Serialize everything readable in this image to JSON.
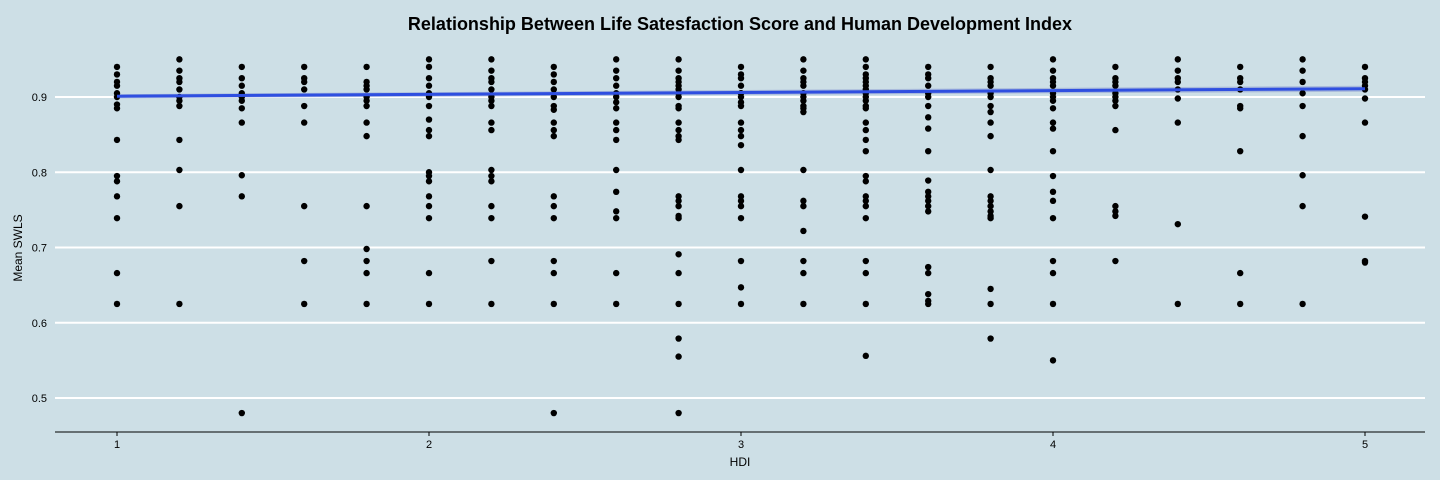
{
  "chart_data": {
    "type": "scatter",
    "title": "Relationship Between Life Satesfaction Score and Human Development Index",
    "xlabel": "HDI",
    "ylabel": "Mean SWLS",
    "xlim": [
      0.8,
      5.2
    ],
    "ylim": [
      0.455,
      0.96
    ],
    "x_ticks": [
      1,
      2,
      3,
      4,
      5
    ],
    "y_ticks": [
      0.5,
      0.6,
      0.7,
      0.8,
      0.9
    ],
    "grid": "horizontal",
    "colors": {
      "background": "#cddfe6",
      "points": "#000000",
      "trend_line": "#2f4fe0",
      "confidence_band": "#9aa9d6",
      "gridline": "#ffffff"
    },
    "trend_line": {
      "method": "linear",
      "x": [
        1,
        5
      ],
      "y": [
        0.901,
        0.911
      ]
    },
    "points": [
      {
        "x": 1.0,
        "y": 0.94
      },
      {
        "x": 1.0,
        "y": 0.93
      },
      {
        "x": 1.0,
        "y": 0.92
      },
      {
        "x": 1.0,
        "y": 0.915
      },
      {
        "x": 1.0,
        "y": 0.905
      },
      {
        "x": 1.0,
        "y": 0.9
      },
      {
        "x": 1.0,
        "y": 0.89
      },
      {
        "x": 1.0,
        "y": 0.885
      },
      {
        "x": 1.0,
        "y": 0.843
      },
      {
        "x": 1.0,
        "y": 0.795
      },
      {
        "x": 1.0,
        "y": 0.788
      },
      {
        "x": 1.0,
        "y": 0.768
      },
      {
        "x": 1.0,
        "y": 0.739
      },
      {
        "x": 1.0,
        "y": 0.666
      },
      {
        "x": 1.0,
        "y": 0.625
      },
      {
        "x": 1.2,
        "y": 0.95
      },
      {
        "x": 1.2,
        "y": 0.935
      },
      {
        "x": 1.2,
        "y": 0.925
      },
      {
        "x": 1.2,
        "y": 0.92
      },
      {
        "x": 1.2,
        "y": 0.91
      },
      {
        "x": 1.2,
        "y": 0.9
      },
      {
        "x": 1.2,
        "y": 0.895
      },
      {
        "x": 1.2,
        "y": 0.888
      },
      {
        "x": 1.2,
        "y": 0.843
      },
      {
        "x": 1.2,
        "y": 0.803
      },
      {
        "x": 1.2,
        "y": 0.755
      },
      {
        "x": 1.2,
        "y": 0.625
      },
      {
        "x": 1.4,
        "y": 0.94
      },
      {
        "x": 1.4,
        "y": 0.925
      },
      {
        "x": 1.4,
        "y": 0.915
      },
      {
        "x": 1.4,
        "y": 0.905
      },
      {
        "x": 1.4,
        "y": 0.9
      },
      {
        "x": 1.4,
        "y": 0.895
      },
      {
        "x": 1.4,
        "y": 0.885
      },
      {
        "x": 1.4,
        "y": 0.866
      },
      {
        "x": 1.4,
        "y": 0.796
      },
      {
        "x": 1.4,
        "y": 0.768
      },
      {
        "x": 1.4,
        "y": 0.48
      },
      {
        "x": 1.6,
        "y": 0.94
      },
      {
        "x": 1.6,
        "y": 0.925
      },
      {
        "x": 1.6,
        "y": 0.92
      },
      {
        "x": 1.6,
        "y": 0.91
      },
      {
        "x": 1.6,
        "y": 0.888
      },
      {
        "x": 1.6,
        "y": 0.866
      },
      {
        "x": 1.6,
        "y": 0.755
      },
      {
        "x": 1.6,
        "y": 0.682
      },
      {
        "x": 1.6,
        "y": 0.625
      },
      {
        "x": 1.8,
        "y": 0.94
      },
      {
        "x": 1.8,
        "y": 0.92
      },
      {
        "x": 1.8,
        "y": 0.915
      },
      {
        "x": 1.8,
        "y": 0.91
      },
      {
        "x": 1.8,
        "y": 0.9
      },
      {
        "x": 1.8,
        "y": 0.895
      },
      {
        "x": 1.8,
        "y": 0.888
      },
      {
        "x": 1.8,
        "y": 0.866
      },
      {
        "x": 1.8,
        "y": 0.848
      },
      {
        "x": 1.8,
        "y": 0.755
      },
      {
        "x": 1.8,
        "y": 0.698
      },
      {
        "x": 1.8,
        "y": 0.682
      },
      {
        "x": 1.8,
        "y": 0.666
      },
      {
        "x": 1.8,
        "y": 0.625
      },
      {
        "x": 2.0,
        "y": 0.95
      },
      {
        "x": 2.0,
        "y": 0.94
      },
      {
        "x": 2.0,
        "y": 0.925
      },
      {
        "x": 2.0,
        "y": 0.915
      },
      {
        "x": 2.0,
        "y": 0.905
      },
      {
        "x": 2.0,
        "y": 0.9
      },
      {
        "x": 2.0,
        "y": 0.888
      },
      {
        "x": 2.0,
        "y": 0.87
      },
      {
        "x": 2.0,
        "y": 0.856
      },
      {
        "x": 2.0,
        "y": 0.848
      },
      {
        "x": 2.0,
        "y": 0.8
      },
      {
        "x": 2.0,
        "y": 0.795
      },
      {
        "x": 2.0,
        "y": 0.788
      },
      {
        "x": 2.0,
        "y": 0.768
      },
      {
        "x": 2.0,
        "y": 0.755
      },
      {
        "x": 2.0,
        "y": 0.739
      },
      {
        "x": 2.0,
        "y": 0.666
      },
      {
        "x": 2.0,
        "y": 0.625
      },
      {
        "x": 2.2,
        "y": 0.95
      },
      {
        "x": 2.2,
        "y": 0.935
      },
      {
        "x": 2.2,
        "y": 0.925
      },
      {
        "x": 2.2,
        "y": 0.92
      },
      {
        "x": 2.2,
        "y": 0.91
      },
      {
        "x": 2.2,
        "y": 0.9
      },
      {
        "x": 2.2,
        "y": 0.895
      },
      {
        "x": 2.2,
        "y": 0.888
      },
      {
        "x": 2.2,
        "y": 0.866
      },
      {
        "x": 2.2,
        "y": 0.856
      },
      {
        "x": 2.2,
        "y": 0.803
      },
      {
        "x": 2.2,
        "y": 0.795
      },
      {
        "x": 2.2,
        "y": 0.788
      },
      {
        "x": 2.2,
        "y": 0.755
      },
      {
        "x": 2.2,
        "y": 0.739
      },
      {
        "x": 2.2,
        "y": 0.682
      },
      {
        "x": 2.2,
        "y": 0.625
      },
      {
        "x": 2.4,
        "y": 0.94
      },
      {
        "x": 2.4,
        "y": 0.93
      },
      {
        "x": 2.4,
        "y": 0.92
      },
      {
        "x": 2.4,
        "y": 0.91
      },
      {
        "x": 2.4,
        "y": 0.9
      },
      {
        "x": 2.4,
        "y": 0.888
      },
      {
        "x": 2.4,
        "y": 0.883
      },
      {
        "x": 2.4,
        "y": 0.866
      },
      {
        "x": 2.4,
        "y": 0.856
      },
      {
        "x": 2.4,
        "y": 0.848
      },
      {
        "x": 2.4,
        "y": 0.768
      },
      {
        "x": 2.4,
        "y": 0.755
      },
      {
        "x": 2.4,
        "y": 0.739
      },
      {
        "x": 2.4,
        "y": 0.682
      },
      {
        "x": 2.4,
        "y": 0.666
      },
      {
        "x": 2.4,
        "y": 0.625
      },
      {
        "x": 2.4,
        "y": 0.48
      },
      {
        "x": 2.6,
        "y": 0.95
      },
      {
        "x": 2.6,
        "y": 0.935
      },
      {
        "x": 2.6,
        "y": 0.925
      },
      {
        "x": 2.6,
        "y": 0.915
      },
      {
        "x": 2.6,
        "y": 0.905
      },
      {
        "x": 2.6,
        "y": 0.9
      },
      {
        "x": 2.6,
        "y": 0.893
      },
      {
        "x": 2.6,
        "y": 0.885
      },
      {
        "x": 2.6,
        "y": 0.866
      },
      {
        "x": 2.6,
        "y": 0.856
      },
      {
        "x": 2.6,
        "y": 0.843
      },
      {
        "x": 2.6,
        "y": 0.803
      },
      {
        "x": 2.6,
        "y": 0.774
      },
      {
        "x": 2.6,
        "y": 0.748
      },
      {
        "x": 2.6,
        "y": 0.739
      },
      {
        "x": 2.6,
        "y": 0.666
      },
      {
        "x": 2.6,
        "y": 0.625
      },
      {
        "x": 2.8,
        "y": 0.95
      },
      {
        "x": 2.8,
        "y": 0.935
      },
      {
        "x": 2.8,
        "y": 0.925
      },
      {
        "x": 2.8,
        "y": 0.92
      },
      {
        "x": 2.8,
        "y": 0.915
      },
      {
        "x": 2.8,
        "y": 0.91
      },
      {
        "x": 2.8,
        "y": 0.905
      },
      {
        "x": 2.8,
        "y": 0.9
      },
      {
        "x": 2.8,
        "y": 0.888
      },
      {
        "x": 2.8,
        "y": 0.885
      },
      {
        "x": 2.8,
        "y": 0.866
      },
      {
        "x": 2.8,
        "y": 0.856
      },
      {
        "x": 2.8,
        "y": 0.848
      },
      {
        "x": 2.8,
        "y": 0.843
      },
      {
        "x": 2.8,
        "y": 0.768
      },
      {
        "x": 2.8,
        "y": 0.762
      },
      {
        "x": 2.8,
        "y": 0.755
      },
      {
        "x": 2.8,
        "y": 0.742
      },
      {
        "x": 2.8,
        "y": 0.739
      },
      {
        "x": 2.8,
        "y": 0.691
      },
      {
        "x": 2.8,
        "y": 0.666
      },
      {
        "x": 2.8,
        "y": 0.625
      },
      {
        "x": 2.8,
        "y": 0.579
      },
      {
        "x": 2.8,
        "y": 0.555
      },
      {
        "x": 2.8,
        "y": 0.48
      },
      {
        "x": 3.0,
        "y": 0.94
      },
      {
        "x": 3.0,
        "y": 0.93
      },
      {
        "x": 3.0,
        "y": 0.925
      },
      {
        "x": 3.0,
        "y": 0.915
      },
      {
        "x": 3.0,
        "y": 0.905
      },
      {
        "x": 3.0,
        "y": 0.9
      },
      {
        "x": 3.0,
        "y": 0.893
      },
      {
        "x": 3.0,
        "y": 0.888
      },
      {
        "x": 3.0,
        "y": 0.866
      },
      {
        "x": 3.0,
        "y": 0.856
      },
      {
        "x": 3.0,
        "y": 0.848
      },
      {
        "x": 3.0,
        "y": 0.836
      },
      {
        "x": 3.0,
        "y": 0.803
      },
      {
        "x": 3.0,
        "y": 0.768
      },
      {
        "x": 3.0,
        "y": 0.762
      },
      {
        "x": 3.0,
        "y": 0.755
      },
      {
        "x": 3.0,
        "y": 0.739
      },
      {
        "x": 3.0,
        "y": 0.682
      },
      {
        "x": 3.0,
        "y": 0.647
      },
      {
        "x": 3.0,
        "y": 0.625
      },
      {
        "x": 3.2,
        "y": 0.95
      },
      {
        "x": 3.2,
        "y": 0.935
      },
      {
        "x": 3.2,
        "y": 0.925
      },
      {
        "x": 3.2,
        "y": 0.92
      },
      {
        "x": 3.2,
        "y": 0.915
      },
      {
        "x": 3.2,
        "y": 0.905
      },
      {
        "x": 3.2,
        "y": 0.9
      },
      {
        "x": 3.2,
        "y": 0.895
      },
      {
        "x": 3.2,
        "y": 0.888
      },
      {
        "x": 3.2,
        "y": 0.885
      },
      {
        "x": 3.2,
        "y": 0.88
      },
      {
        "x": 3.2,
        "y": 0.803
      },
      {
        "x": 3.2,
        "y": 0.762
      },
      {
        "x": 3.2,
        "y": 0.755
      },
      {
        "x": 3.2,
        "y": 0.722
      },
      {
        "x": 3.2,
        "y": 0.682
      },
      {
        "x": 3.2,
        "y": 0.666
      },
      {
        "x": 3.2,
        "y": 0.625
      },
      {
        "x": 3.4,
        "y": 0.95
      },
      {
        "x": 3.4,
        "y": 0.94
      },
      {
        "x": 3.4,
        "y": 0.93
      },
      {
        "x": 3.4,
        "y": 0.925
      },
      {
        "x": 3.4,
        "y": 0.92
      },
      {
        "x": 3.4,
        "y": 0.915
      },
      {
        "x": 3.4,
        "y": 0.91
      },
      {
        "x": 3.4,
        "y": 0.905
      },
      {
        "x": 3.4,
        "y": 0.9
      },
      {
        "x": 3.4,
        "y": 0.895
      },
      {
        "x": 3.4,
        "y": 0.888
      },
      {
        "x": 3.4,
        "y": 0.885
      },
      {
        "x": 3.4,
        "y": 0.866
      },
      {
        "x": 3.4,
        "y": 0.856
      },
      {
        "x": 3.4,
        "y": 0.843
      },
      {
        "x": 3.4,
        "y": 0.828
      },
      {
        "x": 3.4,
        "y": 0.795
      },
      {
        "x": 3.4,
        "y": 0.788
      },
      {
        "x": 3.4,
        "y": 0.768
      },
      {
        "x": 3.4,
        "y": 0.762
      },
      {
        "x": 3.4,
        "y": 0.755
      },
      {
        "x": 3.4,
        "y": 0.739
      },
      {
        "x": 3.4,
        "y": 0.682
      },
      {
        "x": 3.4,
        "y": 0.666
      },
      {
        "x": 3.4,
        "y": 0.625
      },
      {
        "x": 3.4,
        "y": 0.556
      },
      {
        "x": 3.6,
        "y": 0.94
      },
      {
        "x": 3.6,
        "y": 0.93
      },
      {
        "x": 3.6,
        "y": 0.925
      },
      {
        "x": 3.6,
        "y": 0.915
      },
      {
        "x": 3.6,
        "y": 0.905
      },
      {
        "x": 3.6,
        "y": 0.9
      },
      {
        "x": 3.6,
        "y": 0.888
      },
      {
        "x": 3.6,
        "y": 0.873
      },
      {
        "x": 3.6,
        "y": 0.858
      },
      {
        "x": 3.6,
        "y": 0.828
      },
      {
        "x": 3.6,
        "y": 0.789
      },
      {
        "x": 3.6,
        "y": 0.774
      },
      {
        "x": 3.6,
        "y": 0.768
      },
      {
        "x": 3.6,
        "y": 0.762
      },
      {
        "x": 3.6,
        "y": 0.755
      },
      {
        "x": 3.6,
        "y": 0.748
      },
      {
        "x": 3.6,
        "y": 0.674
      },
      {
        "x": 3.6,
        "y": 0.666
      },
      {
        "x": 3.6,
        "y": 0.638
      },
      {
        "x": 3.6,
        "y": 0.629
      },
      {
        "x": 3.6,
        "y": 0.625
      },
      {
        "x": 3.8,
        "y": 0.94
      },
      {
        "x": 3.8,
        "y": 0.925
      },
      {
        "x": 3.8,
        "y": 0.92
      },
      {
        "x": 3.8,
        "y": 0.915
      },
      {
        "x": 3.8,
        "y": 0.905
      },
      {
        "x": 3.8,
        "y": 0.9
      },
      {
        "x": 3.8,
        "y": 0.888
      },
      {
        "x": 3.8,
        "y": 0.88
      },
      {
        "x": 3.8,
        "y": 0.866
      },
      {
        "x": 3.8,
        "y": 0.848
      },
      {
        "x": 3.8,
        "y": 0.803
      },
      {
        "x": 3.8,
        "y": 0.768
      },
      {
        "x": 3.8,
        "y": 0.762
      },
      {
        "x": 3.8,
        "y": 0.755
      },
      {
        "x": 3.8,
        "y": 0.748
      },
      {
        "x": 3.8,
        "y": 0.742
      },
      {
        "x": 3.8,
        "y": 0.739
      },
      {
        "x": 3.8,
        "y": 0.645
      },
      {
        "x": 3.8,
        "y": 0.625
      },
      {
        "x": 3.8,
        "y": 0.579
      },
      {
        "x": 4.0,
        "y": 0.95
      },
      {
        "x": 4.0,
        "y": 0.935
      },
      {
        "x": 4.0,
        "y": 0.925
      },
      {
        "x": 4.0,
        "y": 0.92
      },
      {
        "x": 4.0,
        "y": 0.915
      },
      {
        "x": 4.0,
        "y": 0.905
      },
      {
        "x": 4.0,
        "y": 0.9
      },
      {
        "x": 4.0,
        "y": 0.895
      },
      {
        "x": 4.0,
        "y": 0.885
      },
      {
        "x": 4.0,
        "y": 0.866
      },
      {
        "x": 4.0,
        "y": 0.858
      },
      {
        "x": 4.0,
        "y": 0.828
      },
      {
        "x": 4.0,
        "y": 0.795
      },
      {
        "x": 4.0,
        "y": 0.774
      },
      {
        "x": 4.0,
        "y": 0.762
      },
      {
        "x": 4.0,
        "y": 0.739
      },
      {
        "x": 4.0,
        "y": 0.682
      },
      {
        "x": 4.0,
        "y": 0.666
      },
      {
        "x": 4.0,
        "y": 0.625
      },
      {
        "x": 4.0,
        "y": 0.55
      },
      {
        "x": 4.2,
        "y": 0.94
      },
      {
        "x": 4.2,
        "y": 0.925
      },
      {
        "x": 4.2,
        "y": 0.92
      },
      {
        "x": 4.2,
        "y": 0.915
      },
      {
        "x": 4.2,
        "y": 0.905
      },
      {
        "x": 4.2,
        "y": 0.9
      },
      {
        "x": 4.2,
        "y": 0.895
      },
      {
        "x": 4.2,
        "y": 0.888
      },
      {
        "x": 4.2,
        "y": 0.856
      },
      {
        "x": 4.2,
        "y": 0.755
      },
      {
        "x": 4.2,
        "y": 0.748
      },
      {
        "x": 4.2,
        "y": 0.742
      },
      {
        "x": 4.2,
        "y": 0.682
      },
      {
        "x": 4.4,
        "y": 0.95
      },
      {
        "x": 4.4,
        "y": 0.935
      },
      {
        "x": 4.4,
        "y": 0.925
      },
      {
        "x": 4.4,
        "y": 0.92
      },
      {
        "x": 4.4,
        "y": 0.91
      },
      {
        "x": 4.4,
        "y": 0.898
      },
      {
        "x": 4.4,
        "y": 0.866
      },
      {
        "x": 4.4,
        "y": 0.731
      },
      {
        "x": 4.4,
        "y": 0.625
      },
      {
        "x": 4.6,
        "y": 0.94
      },
      {
        "x": 4.6,
        "y": 0.925
      },
      {
        "x": 4.6,
        "y": 0.92
      },
      {
        "x": 4.6,
        "y": 0.91
      },
      {
        "x": 4.6,
        "y": 0.888
      },
      {
        "x": 4.6,
        "y": 0.885
      },
      {
        "x": 4.6,
        "y": 0.828
      },
      {
        "x": 4.6,
        "y": 0.666
      },
      {
        "x": 4.6,
        "y": 0.625
      },
      {
        "x": 4.8,
        "y": 0.95
      },
      {
        "x": 4.8,
        "y": 0.935
      },
      {
        "x": 4.8,
        "y": 0.92
      },
      {
        "x": 4.8,
        "y": 0.905
      },
      {
        "x": 4.8,
        "y": 0.888
      },
      {
        "x": 4.8,
        "y": 0.848
      },
      {
        "x": 4.8,
        "y": 0.796
      },
      {
        "x": 4.8,
        "y": 0.755
      },
      {
        "x": 4.8,
        "y": 0.625
      },
      {
        "x": 5.0,
        "y": 0.94
      },
      {
        "x": 5.0,
        "y": 0.925
      },
      {
        "x": 5.0,
        "y": 0.92
      },
      {
        "x": 5.0,
        "y": 0.915
      },
      {
        "x": 5.0,
        "y": 0.91
      },
      {
        "x": 5.0,
        "y": 0.898
      },
      {
        "x": 5.0,
        "y": 0.866
      },
      {
        "x": 5.0,
        "y": 0.741
      },
      {
        "x": 5.0,
        "y": 0.682
      },
      {
        "x": 5.0,
        "y": 0.68
      }
    ]
  }
}
